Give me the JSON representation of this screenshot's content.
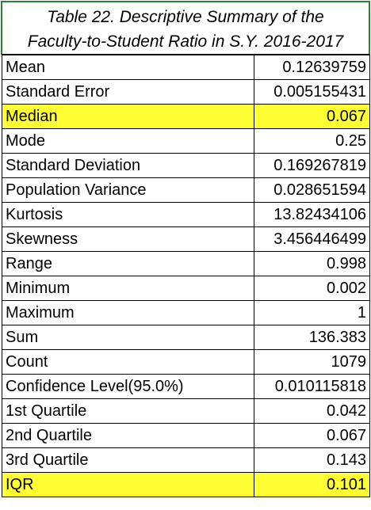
{
  "title": {
    "line1": "Table 22. Descriptive Summary of the",
    "line2": "Faculty-to-Student Ratio in S.Y. 2016-2017"
  },
  "highlight_color": "#ffff33",
  "rows": [
    {
      "label": "Mean",
      "value": "0.12639759",
      "highlight": false
    },
    {
      "label": "Standard Error",
      "value": "0.005155431",
      "highlight": false
    },
    {
      "label": "Median",
      "value": "0.067",
      "highlight": true
    },
    {
      "label": "Mode",
      "value": "0.25",
      "highlight": false
    },
    {
      "label": "Standard Deviation",
      "value": "0.169267819",
      "highlight": false
    },
    {
      "label": "Population Variance",
      "value": "0.028651594",
      "highlight": false
    },
    {
      "label": "Kurtosis",
      "value": "13.82434106",
      "highlight": false
    },
    {
      "label": "Skewness",
      "value": "3.456446499",
      "highlight": false
    },
    {
      "label": "Range",
      "value": "0.998",
      "highlight": false
    },
    {
      "label": "Minimum",
      "value": "0.002",
      "highlight": false
    },
    {
      "label": "Maximum",
      "value": "1",
      "highlight": false
    },
    {
      "label": "Sum",
      "value": "136.383",
      "highlight": false
    },
    {
      "label": "Count",
      "value": "1079",
      "highlight": false
    },
    {
      "label": "Confidence Level(95.0%)",
      "value": "0.010115818",
      "highlight": false
    },
    {
      "label": "1st Quartile",
      "value": "0.042",
      "highlight": false
    },
    {
      "label": "2nd Quartile",
      "value": "0.067",
      "highlight": false
    },
    {
      "label": "3rd Quartile",
      "value": "0.143",
      "highlight": false
    },
    {
      "label": "IQR",
      "value": "0.101",
      "highlight": true
    }
  ]
}
